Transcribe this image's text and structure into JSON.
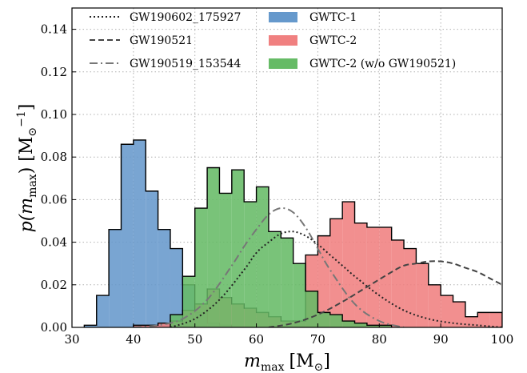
{
  "chart_data": {
    "type": "area",
    "xlabel": {
      "main": "m",
      "sub": "max",
      "unit": "[M",
      "unit_sub": "⊙",
      "unit_end": "]"
    },
    "ylabel": {
      "main": "p(m",
      "sub": "max",
      "mid": ") [M",
      "unit_sub": "⊙",
      "sup": "−1",
      "end": "]"
    },
    "xlim": [
      30,
      100
    ],
    "ylim": [
      0,
      0.15
    ],
    "xticks": [
      "30",
      "40",
      "50",
      "60",
      "70",
      "80",
      "90",
      "100"
    ],
    "yticks": [
      "0.00",
      "0.02",
      "0.04",
      "0.06",
      "0.08",
      "0.10",
      "0.12",
      "0.14"
    ],
    "grid": true,
    "legend_position": "top",
    "bin_width": 2,
    "histograms": [
      {
        "name": "GWTC-1",
        "color": "#6699cc",
        "edges": [
          32,
          34,
          36,
          38,
          40,
          42,
          44,
          46,
          48,
          50,
          52,
          54,
          56
        ],
        "values": [
          0.001,
          0.015,
          0.046,
          0.086,
          0.088,
          0.064,
          0.046,
          0.037,
          0.02,
          0.007,
          0.002,
          0.001
        ]
      },
      {
        "name": "GWTC-2",
        "color": "#f08080",
        "edges": [
          40,
          42,
          44,
          46,
          48,
          50,
          52,
          54,
          56,
          58,
          60,
          62,
          64,
          66,
          68,
          70,
          72,
          74,
          76,
          78,
          80,
          82,
          84,
          86,
          88,
          90,
          92,
          94,
          96,
          98,
          100
        ],
        "values": [
          0.001,
          0.001,
          0.002,
          0.003,
          0.008,
          0.011,
          0.018,
          0.014,
          0.011,
          0.009,
          0.007,
          0.005,
          0.003,
          0.003,
          0.034,
          0.043,
          0.051,
          0.059,
          0.049,
          0.047,
          0.047,
          0.041,
          0.037,
          0.03,
          0.02,
          0.015,
          0.012,
          0.005,
          0.007,
          0.007
        ]
      },
      {
        "name": "GWTC-2 (w/o GW190521)",
        "color": "#66bb66",
        "edges": [
          46,
          48,
          50,
          52,
          54,
          56,
          58,
          60,
          62,
          64,
          66,
          68,
          70,
          72,
          74,
          76,
          78,
          80,
          82
        ],
        "values": [
          0.006,
          0.024,
          0.056,
          0.075,
          0.063,
          0.074,
          0.059,
          0.066,
          0.045,
          0.042,
          0.03,
          0.017,
          0.007,
          0.006,
          0.003,
          0.002,
          0.001,
          0.001
        ]
      }
    ],
    "curves": [
      {
        "name": "GW190602_175927",
        "style": "dotted",
        "color": "#222222",
        "x": [
          46,
          50,
          54,
          58,
          60,
          62,
          64,
          66,
          68,
          70,
          72,
          74,
          76,
          80,
          84,
          88,
          92,
          96,
          100
        ],
        "y": [
          0.0,
          0.004,
          0.013,
          0.027,
          0.035,
          0.04,
          0.044,
          0.045,
          0.043,
          0.039,
          0.034,
          0.029,
          0.024,
          0.015,
          0.008,
          0.004,
          0.002,
          0.001,
          0.0
        ]
      },
      {
        "name": "GW190521",
        "style": "dashed",
        "color": "#444444",
        "x": [
          62,
          66,
          70,
          74,
          78,
          82,
          84,
          86,
          88,
          90,
          92,
          94,
          96,
          98,
          100
        ],
        "y": [
          0.0,
          0.002,
          0.006,
          0.012,
          0.019,
          0.026,
          0.029,
          0.03,
          0.031,
          0.031,
          0.03,
          0.028,
          0.026,
          0.023,
          0.02
        ]
      },
      {
        "name": "GW190519_153544",
        "style": "dashdot",
        "color": "#777777",
        "x": [
          40,
          44,
          48,
          52,
          56,
          58,
          60,
          62,
          64,
          66,
          68,
          70,
          72,
          76,
          80,
          84
        ],
        "y": [
          0.0,
          0.001,
          0.004,
          0.013,
          0.029,
          0.038,
          0.046,
          0.053,
          0.056,
          0.054,
          0.047,
          0.037,
          0.027,
          0.011,
          0.003,
          0.0
        ]
      }
    ]
  },
  "legend": {
    "col1": [
      {
        "label": "GW190602_175927",
        "style": "dotted"
      },
      {
        "label": "GW190521",
        "style": "dashed"
      },
      {
        "label": "GW190519_153544",
        "style": "dashdot"
      }
    ],
    "col2": [
      {
        "label": "GWTC-1",
        "color": "#6699cc"
      },
      {
        "label": "GWTC-2",
        "color": "#f08080"
      },
      {
        "label": "GWTC-2 (w/o GW190521)",
        "color": "#66bb66"
      }
    ]
  }
}
